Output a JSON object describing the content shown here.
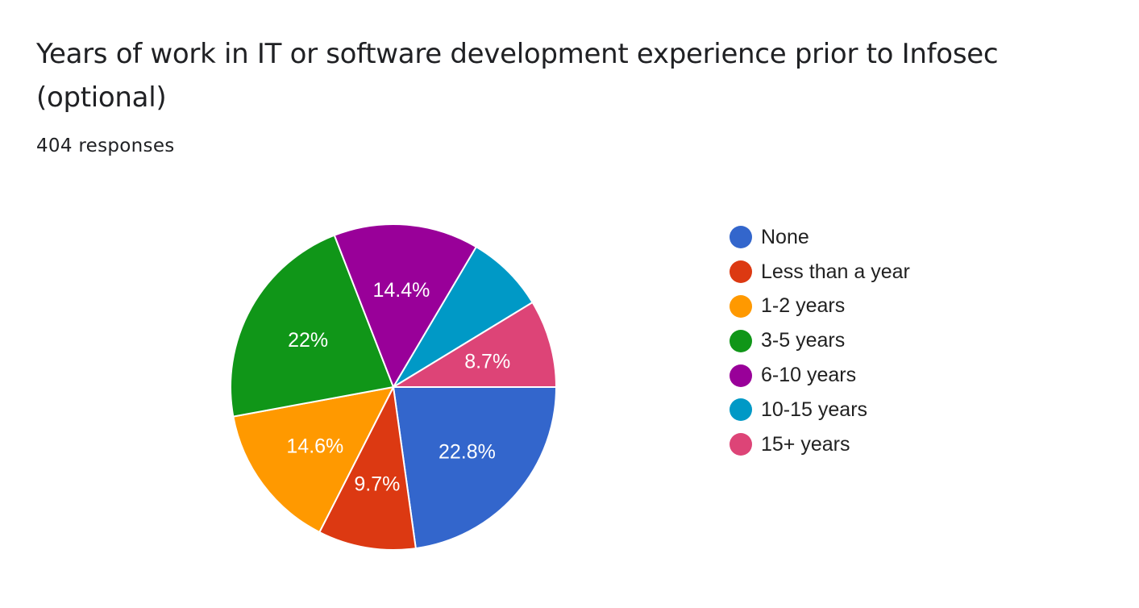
{
  "header": {
    "title": "Years of work in IT or software development experience prior to Infosec (optional)",
    "responses": "404 responses"
  },
  "chart_data": {
    "type": "pie",
    "title": "Years of work in IT or software development experience prior to Infosec (optional)",
    "subtitle": "404 responses",
    "start_angle": "3 o'clock, clockwise",
    "legend_position": "right",
    "slices": [
      {
        "label": "None",
        "value": 22.8,
        "display": "22.8%",
        "color": "#3366cc"
      },
      {
        "label": "Less than a year",
        "value": 9.7,
        "display": "9.7%",
        "color": "#dc3912"
      },
      {
        "label": "1-2 years",
        "value": 14.6,
        "display": "14.6%",
        "color": "#ff9900"
      },
      {
        "label": "3-5 years",
        "value": 22.0,
        "display": "22%",
        "color": "#109618"
      },
      {
        "label": "6-10 years",
        "value": 14.4,
        "display": "14.4%",
        "color": "#990099"
      },
      {
        "label": "10-15 years",
        "value": 7.8,
        "display": "",
        "color": "#0099c6"
      },
      {
        "label": "15+ years",
        "value": 8.7,
        "display": "8.7%",
        "color": "#dd4477"
      }
    ]
  }
}
